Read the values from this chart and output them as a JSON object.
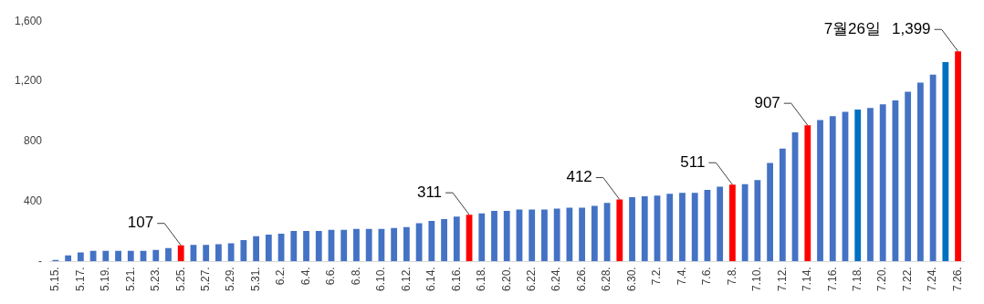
{
  "chart_data": {
    "type": "bar",
    "categories": [
      "5.15.",
      null,
      "5.17.",
      null,
      "5.19.",
      null,
      "5.21.",
      null,
      "5.23.",
      null,
      "5.25.",
      null,
      "5.27.",
      null,
      "5.29.",
      null,
      "5.31.",
      null,
      "6.2.",
      null,
      "6.4.",
      null,
      "6.6.",
      null,
      "6.8.",
      null,
      "6.10.",
      null,
      "6.12.",
      null,
      "6.14.",
      null,
      "6.16.",
      null,
      "6.18.",
      null,
      "6.20.",
      null,
      "6.22.",
      null,
      "6.24.",
      null,
      "6.26.",
      null,
      "6.28.",
      null,
      "6.30.",
      null,
      "7.2.",
      null,
      "7.4.",
      null,
      "7.6.",
      null,
      "7.8.",
      null,
      "7.10.",
      null,
      "7.12.",
      null,
      "7.14.",
      null,
      "7.16.",
      null,
      "7.18.",
      null,
      "7.20.",
      null,
      "7.22.",
      null,
      "7.24.",
      null,
      "7.26."
    ],
    "values": [
      10,
      40,
      60,
      70,
      70,
      70,
      70,
      70,
      76,
      88,
      107,
      110,
      110,
      115,
      120,
      142,
      168,
      178,
      184,
      202,
      202,
      202,
      210,
      210,
      216,
      216,
      216,
      222,
      228,
      254,
      270,
      282,
      298,
      311,
      320,
      336,
      336,
      346,
      346,
      346,
      352,
      358,
      358,
      370,
      390,
      412,
      428,
      434,
      438,
      450,
      456,
      456,
      476,
      498,
      511,
      514,
      542,
      656,
      752,
      860,
      907,
      942,
      968,
      996,
      1012,
      1022,
      1046,
      1072,
      1130,
      1190,
      1244,
      1328,
      1399
    ],
    "colors": [
      "#4472c4",
      "#4472c4",
      "#4472c4",
      "#4472c4",
      "#4472c4",
      "#4472c4",
      "#4472c4",
      "#4472c4",
      "#4472c4",
      "#4472c4",
      "#ff0000",
      "#4472c4",
      "#4472c4",
      "#4472c4",
      "#4472c4",
      "#4472c4",
      "#4472c4",
      "#4472c4",
      "#4472c4",
      "#4472c4",
      "#4472c4",
      "#4472c4",
      "#4472c4",
      "#4472c4",
      "#4472c4",
      "#4472c4",
      "#4472c4",
      "#4472c4",
      "#4472c4",
      "#4472c4",
      "#4472c4",
      "#4472c4",
      "#4472c4",
      "#ff0000",
      "#4472c4",
      "#4472c4",
      "#4472c4",
      "#4472c4",
      "#4472c4",
      "#4472c4",
      "#4472c4",
      "#4472c4",
      "#4472c4",
      "#4472c4",
      "#4472c4",
      "#ff0000",
      "#4472c4",
      "#4472c4",
      "#4472c4",
      "#4472c4",
      "#4472c4",
      "#4472c4",
      "#4472c4",
      "#4472c4",
      "#ff0000",
      "#4472c4",
      "#4472c4",
      "#4472c4",
      "#4472c4",
      "#4472c4",
      "#ff0000",
      "#4472c4",
      "#4472c4",
      "#4472c4",
      "#0070c0",
      "#4472c4",
      "#4472c4",
      "#4472c4",
      "#4472c4",
      "#4472c4",
      "#4472c4",
      "#0070c0",
      "#ff0000"
    ],
    "value_labels": [
      null,
      null,
      null,
      null,
      null,
      null,
      null,
      null,
      null,
      null,
      "107",
      null,
      null,
      null,
      null,
      null,
      null,
      null,
      null,
      null,
      null,
      null,
      null,
      null,
      null,
      null,
      null,
      null,
      null,
      null,
      null,
      null,
      null,
      "311",
      null,
      null,
      null,
      null,
      null,
      null,
      null,
      null,
      null,
      null,
      null,
      "412",
      null,
      null,
      null,
      null,
      null,
      null,
      null,
      null,
      "511",
      null,
      null,
      null,
      null,
      null,
      "907",
      null,
      null,
      null,
      null,
      null,
      null,
      null,
      null,
      null,
      null,
      null,
      "1,399"
    ],
    "annotations": [
      "7월26일"
    ],
    "ylim": [
      0,
      1600
    ],
    "yticks": [
      {
        "value": 0,
        "label": "-"
      },
      400,
      800,
      {
        "value": 1200,
        "label": "1,200"
      },
      {
        "value": 1600,
        "label": "1,600"
      }
    ],
    "grid": false,
    "legend": false
  }
}
